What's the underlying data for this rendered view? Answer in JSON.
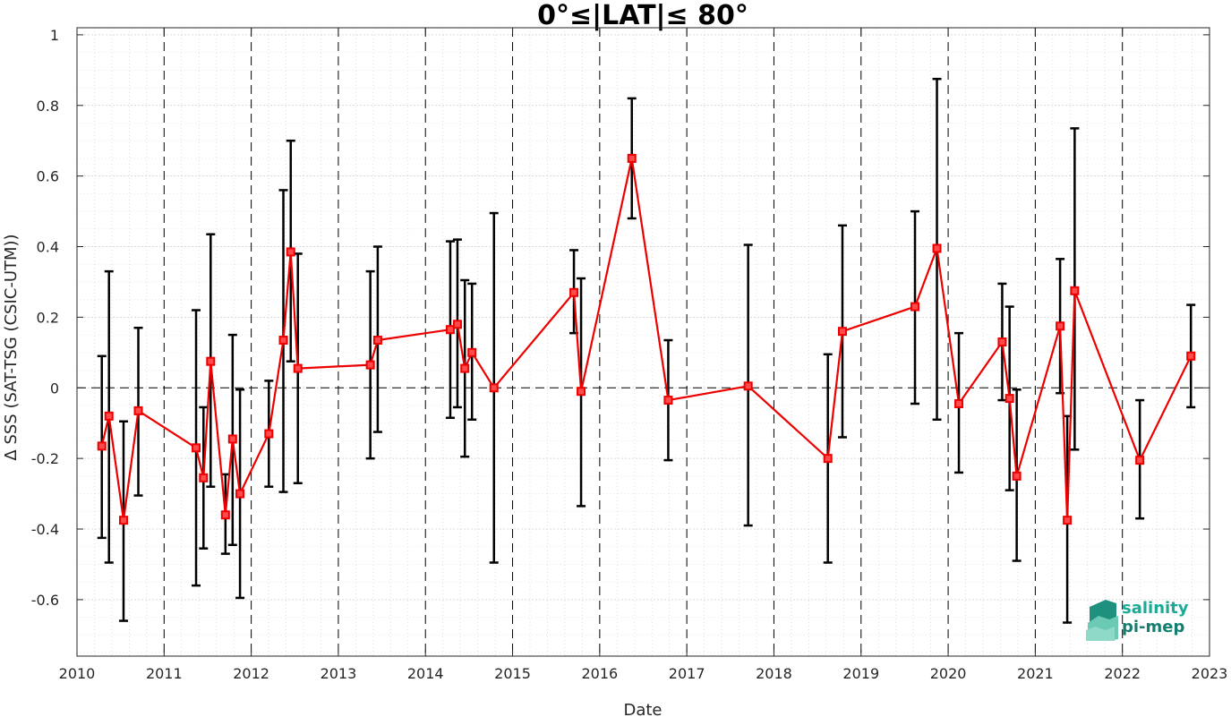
{
  "chart_data": {
    "type": "line",
    "title": "0°≤|LAT|≤ 80°",
    "xlabel": "Date",
    "ylabel": "Δ SSS (SAT-TSG (CSIC-UTM))",
    "xlim": [
      "2010-01-01",
      "2023-01-01"
    ],
    "ylim": [
      -0.76,
      1.02
    ],
    "xticks": [
      "2010",
      "2011",
      "2012",
      "2013",
      "2014",
      "2015",
      "2016",
      "2017",
      "2018",
      "2019",
      "2020",
      "2021",
      "2022",
      "2023"
    ],
    "yticks": [
      {
        "value": 1,
        "label": "1"
      },
      {
        "value": 0.8,
        "label": "0.8"
      },
      {
        "value": 0.6,
        "label": "0.6"
      },
      {
        "value": 0.4,
        "label": "0.4"
      },
      {
        "value": 0.2,
        "label": "0.2"
      },
      {
        "value": 0,
        "label": "0"
      },
      {
        "value": -0.2,
        "label": "-0.2"
      },
      {
        "value": -0.4,
        "label": "-0.4"
      },
      {
        "value": -0.6,
        "label": "-0.6"
      }
    ],
    "grid": true,
    "year_dividers": "dashed",
    "zero_line": "dashed",
    "colors": {
      "line": "#ee0000",
      "errorbar": "#000000",
      "marker": "#ee0000"
    },
    "series": [
      {
        "marker": "square",
        "points": [
          {
            "x": "2010-04-15",
            "y": -0.165,
            "lo": -0.425,
            "hi": 0.09
          },
          {
            "x": "2010-05-15",
            "y": -0.08,
            "lo": -0.495,
            "hi": 0.33
          },
          {
            "x": "2010-07-15",
            "y": -0.375,
            "lo": -0.66,
            "hi": -0.095
          },
          {
            "x": "2010-09-15",
            "y": -0.065,
            "lo": -0.305,
            "hi": 0.17
          },
          {
            "x": "2011-05-15",
            "y": -0.17,
            "lo": -0.56,
            "hi": 0.22
          },
          {
            "x": "2011-06-15",
            "y": -0.255,
            "lo": -0.455,
            "hi": -0.055
          },
          {
            "x": "2011-07-15",
            "y": 0.075,
            "lo": -0.28,
            "hi": 0.435
          },
          {
            "x": "2011-09-15",
            "y": -0.36,
            "lo": -0.47,
            "hi": -0.245
          },
          {
            "x": "2011-10-15",
            "y": -0.145,
            "lo": -0.445,
            "hi": 0.15
          },
          {
            "x": "2011-11-15",
            "y": -0.3,
            "lo": -0.595,
            "hi": -0.005
          },
          {
            "x": "2012-03-15",
            "y": -0.13,
            "lo": -0.28,
            "hi": 0.02
          },
          {
            "x": "2012-05-15",
            "y": 0.135,
            "lo": -0.295,
            "hi": 0.56
          },
          {
            "x": "2012-06-15",
            "y": 0.385,
            "lo": 0.075,
            "hi": 0.7
          },
          {
            "x": "2012-07-15",
            "y": 0.055,
            "lo": -0.27,
            "hi": 0.38
          },
          {
            "x": "2013-05-15",
            "y": 0.065,
            "lo": -0.2,
            "hi": 0.33
          },
          {
            "x": "2013-06-15",
            "y": 0.135,
            "lo": -0.125,
            "hi": 0.4
          },
          {
            "x": "2014-04-15",
            "y": 0.165,
            "lo": -0.085,
            "hi": 0.415
          },
          {
            "x": "2014-05-15",
            "y": 0.18,
            "lo": -0.055,
            "hi": 0.42
          },
          {
            "x": "2014-06-15",
            "y": 0.055,
            "lo": -0.195,
            "hi": 0.305
          },
          {
            "x": "2014-07-15",
            "y": 0.1,
            "lo": -0.09,
            "hi": 0.295
          },
          {
            "x": "2014-10-15",
            "y": 0.0,
            "lo": -0.495,
            "hi": 0.495
          },
          {
            "x": "2015-09-15",
            "y": 0.27,
            "lo": 0.155,
            "hi": 0.39
          },
          {
            "x": "2015-10-15",
            "y": -0.01,
            "lo": -0.335,
            "hi": 0.31
          },
          {
            "x": "2016-05-15",
            "y": 0.65,
            "lo": 0.48,
            "hi": 0.82
          },
          {
            "x": "2016-10-15",
            "y": -0.035,
            "lo": -0.205,
            "hi": 0.135
          },
          {
            "x": "2017-09-15",
            "y": 0.005,
            "lo": -0.39,
            "hi": 0.405
          },
          {
            "x": "2018-08-15",
            "y": -0.2,
            "lo": -0.495,
            "hi": 0.095
          },
          {
            "x": "2018-10-15",
            "y": 0.16,
            "lo": -0.14,
            "hi": 0.46
          },
          {
            "x": "2019-08-15",
            "y": 0.23,
            "lo": -0.045,
            "hi": 0.5
          },
          {
            "x": "2019-11-15",
            "y": 0.395,
            "lo": -0.09,
            "hi": 0.875
          },
          {
            "x": "2020-02-15",
            "y": -0.045,
            "lo": -0.24,
            "hi": 0.155
          },
          {
            "x": "2020-08-15",
            "y": 0.13,
            "lo": -0.035,
            "hi": 0.295
          },
          {
            "x": "2020-09-15",
            "y": -0.03,
            "lo": -0.29,
            "hi": 0.23
          },
          {
            "x": "2020-10-15",
            "y": -0.25,
            "lo": -0.49,
            "hi": -0.005
          },
          {
            "x": "2021-04-15",
            "y": 0.175,
            "lo": -0.015,
            "hi": 0.365
          },
          {
            "x": "2021-05-15",
            "y": -0.375,
            "lo": -0.665,
            "hi": -0.08
          },
          {
            "x": "2021-06-15",
            "y": 0.275,
            "lo": -0.175,
            "hi": 0.735
          },
          {
            "x": "2022-03-15",
            "y": -0.205,
            "lo": -0.37,
            "hi": -0.035
          },
          {
            "x": "2022-10-15",
            "y": 0.09,
            "lo": -0.055,
            "hi": 0.235
          }
        ]
      }
    ]
  },
  "logo": {
    "line1": "salinity",
    "line2": "pi-mep",
    "colors": {
      "text1": "#1aaa96",
      "text2": "#147e70",
      "mark_dark": "#1f8f7e",
      "mark_light": "#8fd9c8"
    }
  }
}
